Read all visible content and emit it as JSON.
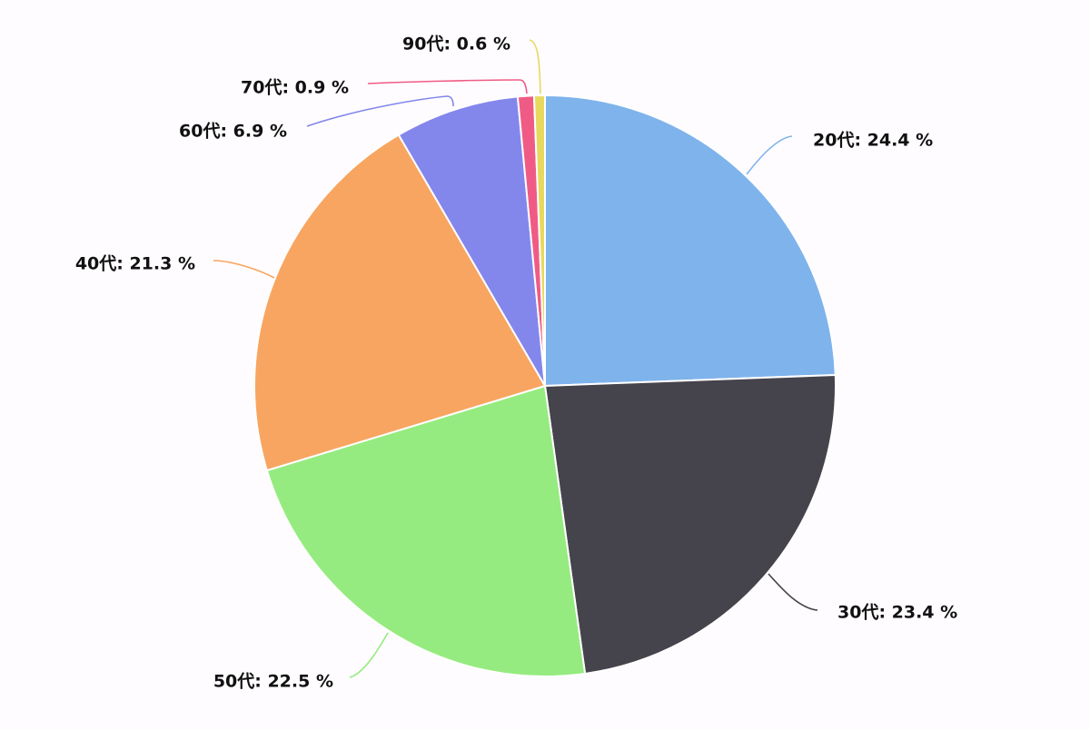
{
  "chart_data": {
    "type": "pie",
    "start_direction": "top",
    "rotation": "clockwise",
    "slices": [
      {
        "label": "20代",
        "value": 24.4,
        "display": "20代: 24.4 %",
        "color": "#7fb3ec"
      },
      {
        "label": "30代",
        "value": 23.4,
        "display": "30代: 23.4 %",
        "color": "#45434b"
      },
      {
        "label": "50代",
        "value": 22.5,
        "display": "50代: 22.5 %",
        "color": "#95eb7f"
      },
      {
        "label": "40代",
        "value": 21.3,
        "display": "40代: 21.3 %",
        "color": "#f8a561"
      },
      {
        "label": "60代",
        "value": 6.9,
        "display": "60代: 6.9 %",
        "color": "#8387ec"
      },
      {
        "label": "70代",
        "value": 0.9,
        "display": "70代: 0.9 %",
        "color": "#f05b85"
      },
      {
        "label": "90代",
        "value": 0.6,
        "display": "90代: 0.6 %",
        "color": "#e7d95d"
      }
    ]
  }
}
